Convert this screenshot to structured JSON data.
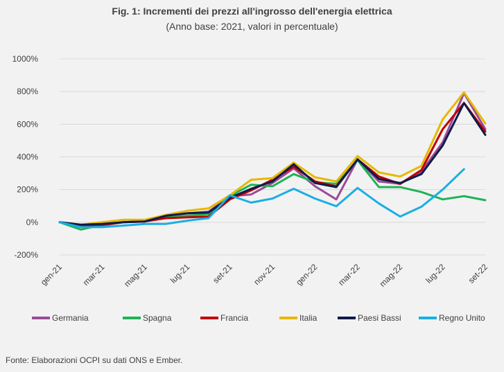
{
  "chart_data": {
    "type": "line",
    "title": "Fig. 1: Incrementi dei prezzi all'ingrosso dell'energia elettrica",
    "subtitle": "(Anno base: 2021, valori in percentuale)",
    "xlabel": "",
    "ylabel": "",
    "ylim": [
      -200,
      1000
    ],
    "yticks": [
      -200,
      0,
      200,
      400,
      600,
      800,
      1000
    ],
    "ytick_labels": [
      "-200%",
      "0%",
      "200%",
      "400%",
      "600%",
      "800%",
      "1000%"
    ],
    "grid": true,
    "legend_position": "bottom",
    "x": [
      "gen-21",
      "feb-21",
      "mar-21",
      "apr-21",
      "mag-21",
      "giu-21",
      "lug-21",
      "ago-21",
      "set-21",
      "ott-21",
      "nov-21",
      "dic-21",
      "gen-22",
      "feb-22",
      "mar-22",
      "apr-22",
      "mag-22",
      "giu-22",
      "lug-22",
      "ago-22",
      "set-22"
    ],
    "xtick_labels": [
      {
        "index": 0,
        "label": "gen-21"
      },
      {
        "index": 2,
        "label": "mar-21"
      },
      {
        "index": 4,
        "label": "mag-21"
      },
      {
        "index": 6,
        "label": "lug-21"
      },
      {
        "index": 8,
        "label": "set-21"
      },
      {
        "index": 10,
        "label": "nov-21"
      },
      {
        "index": 12,
        "label": "gen-22"
      },
      {
        "index": 14,
        "label": "mar-22"
      },
      {
        "index": 16,
        "label": "mag-22"
      },
      {
        "index": 18,
        "label": "lug-22"
      },
      {
        "index": 20,
        "label": "set-22"
      }
    ],
    "series": [
      {
        "name": "Germania",
        "color": "#9b4a96",
        "values": [
          0,
          -25,
          -20,
          0,
          5,
          40,
          55,
          65,
          160,
          170,
          240,
          330,
          220,
          140,
          385,
          250,
          235,
          310,
          490,
          790,
          570
        ]
      },
      {
        "name": "Spagna",
        "color": "#1fb256",
        "values": [
          0,
          -45,
          -15,
          0,
          10,
          30,
          40,
          50,
          160,
          230,
          220,
          295,
          245,
          235,
          380,
          215,
          215,
          185,
          140,
          160,
          135
        ]
      },
      {
        "name": "Francia",
        "color": "#c00000",
        "values": [
          0,
          -20,
          -15,
          0,
          5,
          25,
          30,
          35,
          140,
          195,
          260,
          340,
          250,
          220,
          385,
          280,
          235,
          320,
          570,
          730,
          555
        ]
      },
      {
        "name": "Italia",
        "color": "#e6b800",
        "values": [
          0,
          -15,
          0,
          15,
          15,
          45,
          70,
          85,
          165,
          260,
          270,
          365,
          275,
          250,
          405,
          305,
          280,
          345,
          630,
          795,
          605
        ]
      },
      {
        "name": "Paesi Bassi",
        "color": "#0d1b4a",
        "values": [
          0,
          -15,
          -10,
          0,
          5,
          40,
          55,
          60,
          150,
          205,
          250,
          355,
          240,
          215,
          385,
          265,
          240,
          295,
          470,
          730,
          535
        ]
      },
      {
        "name": "Regno Unito",
        "color": "#1aaee3",
        "values": [
          0,
          -30,
          -30,
          -20,
          -10,
          -10,
          10,
          25,
          165,
          120,
          145,
          205,
          145,
          98,
          210,
          115,
          35,
          95,
          200,
          325,
          null
        ]
      }
    ]
  },
  "footer": {
    "source": "Fonte: Elaborazioni OCPI su dati ONS e Ember."
  }
}
